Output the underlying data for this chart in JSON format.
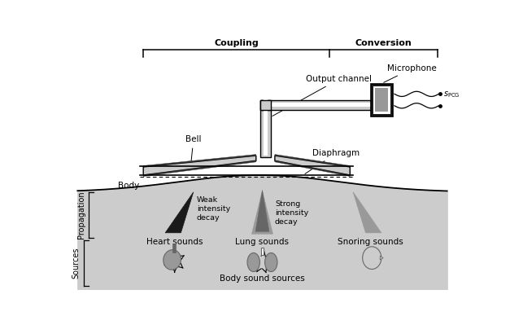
{
  "bg_color": "#ffffff",
  "gray_light": "#cccccc",
  "gray_mid": "#999999",
  "gray_dark": "#666666",
  "gray_darker": "#333333",
  "labels": {
    "coupling": "Coupling",
    "conversion": "Conversion",
    "output_channel": "Output channel",
    "microphone": "Microphone",
    "spcg": "$s_{\\mathrm{PCG}}$",
    "bell": "Bell",
    "diaphragm": "Diaphragm",
    "body": "Body",
    "weak": "Weak\nintensity\ndecay",
    "strong": "Strong\nintensity\ndecay",
    "heart": "Heart sounds",
    "lung": "Lung sounds",
    "snoring": "Snoring sounds",
    "body_sound": "Body sound sources",
    "propagation": "Propagation",
    "sources": "Sources"
  }
}
